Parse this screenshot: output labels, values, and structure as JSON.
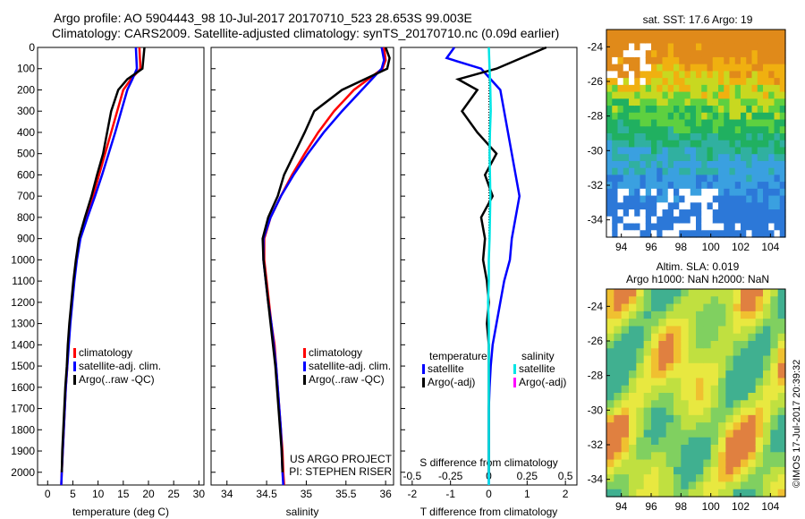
{
  "header": {
    "line1": "Argo profile: AO 5904443_98 10-Jul-2017 20170710_523 28.653S 99.003E",
    "line2": "Climatology: CARS2009. Satellite-adjusted climatology: synTS_20170710.nc (0.09d earlier)"
  },
  "colors": {
    "climatology": "#ff0000",
    "satellite": "#0000ff",
    "argo": "#000000",
    "satellite_salinity": "#00e5e5",
    "argo_salinity": "#ff00ff"
  },
  "chart_data": [
    {
      "type": "line",
      "panel": "temperature",
      "xlabel": "temperature (deg C)",
      "ylabel": "",
      "xlim": [
        -2,
        31
      ],
      "ylim": [
        2060,
        0
      ],
      "xticks": [
        0,
        5,
        10,
        15,
        20,
        25,
        30
      ],
      "yticks": [
        0,
        100,
        200,
        300,
        400,
        500,
        600,
        700,
        800,
        900,
        1000,
        1100,
        1200,
        1300,
        1400,
        1500,
        1600,
        1700,
        1800,
        1900,
        2000
      ],
      "legend": [
        "climatology",
        "satellite-adj. clim.",
        "Argo(..raw -QC)"
      ],
      "series": [
        {
          "name": "climatology",
          "color": "#ff0000",
          "points": [
            [
              18.2,
              0
            ],
            [
              18.3,
              50
            ],
            [
              18.4,
              100
            ],
            [
              16.5,
              150
            ],
            [
              15.0,
              200
            ],
            [
              13.8,
              300
            ],
            [
              12.6,
              400
            ],
            [
              11.4,
              500
            ],
            [
              10.2,
              600
            ],
            [
              9.0,
              700
            ],
            [
              7.7,
              800
            ],
            [
              6.4,
              900
            ],
            [
              5.7,
              1000
            ],
            [
              5.2,
              1100
            ],
            [
              4.8,
              1200
            ],
            [
              4.4,
              1300
            ],
            [
              4.1,
              1400
            ],
            [
              3.9,
              1500
            ],
            [
              3.6,
              1600
            ],
            [
              3.4,
              1700
            ],
            [
              3.2,
              1800
            ],
            [
              3.0,
              1900
            ],
            [
              2.8,
              2000
            ],
            [
              2.7,
              2060
            ]
          ]
        },
        {
          "name": "satellite-adj. clim.",
          "color": "#0000ff",
          "points": [
            [
              17.5,
              0
            ],
            [
              17.6,
              50
            ],
            [
              17.7,
              100
            ],
            [
              16.8,
              150
            ],
            [
              15.8,
              200
            ],
            [
              14.6,
              300
            ],
            [
              13.4,
              400
            ],
            [
              12.1,
              500
            ],
            [
              10.8,
              600
            ],
            [
              9.4,
              700
            ],
            [
              7.9,
              800
            ],
            [
              6.5,
              900
            ],
            [
              5.8,
              1000
            ],
            [
              5.3,
              1100
            ],
            [
              4.9,
              1200
            ],
            [
              4.5,
              1300
            ],
            [
              4.2,
              1400
            ],
            [
              3.9,
              1500
            ],
            [
              3.6,
              1600
            ],
            [
              3.4,
              1700
            ],
            [
              3.2,
              1800
            ],
            [
              3.0,
              1900
            ],
            [
              2.8,
              2000
            ],
            [
              2.7,
              2060
            ]
          ]
        },
        {
          "name": "Argo(..raw -QC)",
          "color": "#000000",
          "points": [
            [
              19.2,
              0
            ],
            [
              19.0,
              50
            ],
            [
              18.8,
              100
            ],
            [
              15.8,
              150
            ],
            [
              14.0,
              200
            ],
            [
              12.6,
              300
            ],
            [
              11.8,
              400
            ],
            [
              11.0,
              500
            ],
            [
              9.8,
              600
            ],
            [
              8.7,
              700
            ],
            [
              7.4,
              800
            ],
            [
              6.2,
              900
            ],
            [
              5.6,
              1000
            ],
            [
              5.1,
              1100
            ],
            [
              4.7,
              1200
            ],
            [
              4.3,
              1300
            ],
            [
              4.0,
              1400
            ],
            [
              3.8,
              1500
            ],
            [
              3.5,
              1600
            ],
            [
              3.3,
              1700
            ],
            [
              3.1,
              1800
            ],
            [
              2.9,
              1900
            ],
            [
              2.8,
              2000
            ]
          ]
        }
      ]
    },
    {
      "type": "line",
      "panel": "salinity",
      "xlabel": "salinity",
      "ylabel": "",
      "xlim": [
        33.8,
        36.1
      ],
      "ylim": [
        2060,
        0
      ],
      "xticks": [
        34,
        34.5,
        35,
        35.5,
        36
      ],
      "legend": [
        "climatology",
        "satellite-adj. clim.",
        "Argo(..raw -QC)"
      ],
      "annotation": [
        "US ARGO PROJECT",
        "PI: STEPHEN RISER"
      ],
      "series": [
        {
          "name": "climatology",
          "color": "#ff0000",
          "points": [
            [
              35.98,
              0
            ],
            [
              36.0,
              60
            ],
            [
              35.96,
              100
            ],
            [
              35.6,
              200
            ],
            [
              35.35,
              300
            ],
            [
              35.15,
              400
            ],
            [
              34.98,
              500
            ],
            [
              34.82,
              600
            ],
            [
              34.68,
              700
            ],
            [
              34.55,
              800
            ],
            [
              34.47,
              900
            ],
            [
              34.47,
              1000
            ],
            [
              34.5,
              1100
            ],
            [
              34.53,
              1200
            ],
            [
              34.56,
              1300
            ],
            [
              34.6,
              1400
            ],
            [
              34.62,
              1500
            ],
            [
              34.64,
              1600
            ],
            [
              34.66,
              1700
            ],
            [
              34.68,
              1800
            ],
            [
              34.7,
              1900
            ],
            [
              34.71,
              2000
            ],
            [
              34.72,
              2060
            ]
          ]
        },
        {
          "name": "satellite-adj. clim.",
          "color": "#0000ff",
          "points": [
            [
              35.95,
              0
            ],
            [
              35.98,
              60
            ],
            [
              35.95,
              100
            ],
            [
              35.7,
              200
            ],
            [
              35.45,
              300
            ],
            [
              35.22,
              400
            ],
            [
              35.02,
              500
            ],
            [
              34.84,
              600
            ],
            [
              34.68,
              700
            ],
            [
              34.55,
              800
            ],
            [
              34.46,
              900
            ],
            [
              34.46,
              1000
            ],
            [
              34.49,
              1100
            ],
            [
              34.52,
              1200
            ],
            [
              34.56,
              1300
            ],
            [
              34.59,
              1400
            ],
            [
              34.62,
              1500
            ],
            [
              34.64,
              1600
            ],
            [
              34.66,
              1700
            ],
            [
              34.68,
              1800
            ],
            [
              34.69,
              1900
            ],
            [
              34.7,
              2000
            ],
            [
              34.71,
              2060
            ]
          ]
        },
        {
          "name": "Argo(..raw -QC)",
          "color": "#000000",
          "points": [
            [
              36.0,
              0
            ],
            [
              36.05,
              50
            ],
            [
              36.02,
              100
            ],
            [
              35.45,
              200
            ],
            [
              35.1,
              300
            ],
            [
              34.98,
              400
            ],
            [
              34.85,
              500
            ],
            [
              34.72,
              600
            ],
            [
              34.64,
              700
            ],
            [
              34.52,
              800
            ],
            [
              34.45,
              900
            ],
            [
              34.46,
              1000
            ],
            [
              34.49,
              1100
            ],
            [
              34.52,
              1200
            ],
            [
              34.55,
              1300
            ],
            [
              34.58,
              1400
            ],
            [
              34.61,
              1500
            ],
            [
              34.63,
              1600
            ],
            [
              34.65,
              1700
            ],
            [
              34.67,
              1800
            ],
            [
              34.69,
              1900
            ],
            [
              34.7,
              2000
            ]
          ]
        }
      ]
    },
    {
      "type": "line",
      "panel": "difference",
      "xlabel": "T difference from climatology",
      "xlabel_top": "S difference from climatology",
      "xlim": [
        -2.3,
        2.3
      ],
      "ylim": [
        2060,
        0
      ],
      "xticks": [
        -2,
        -1,
        0,
        1,
        2
      ],
      "xticks_s": [
        -0.5,
        -0.25,
        0,
        0.25,
        0.5
      ],
      "legend_headers": [
        "temperature",
        "salinity"
      ],
      "legend": [
        "satellite",
        "Argo(-adj)",
        "satellite",
        "Argo(-adj)"
      ],
      "series": [
        {
          "name": "T satellite",
          "color": "#0000ff",
          "points": [
            [
              -0.9,
              0
            ],
            [
              -1.1,
              50
            ],
            [
              -0.2,
              100
            ],
            [
              0.3,
              200
            ],
            [
              0.4,
              300
            ],
            [
              0.5,
              400
            ],
            [
              0.6,
              500
            ],
            [
              0.7,
              600
            ],
            [
              0.8,
              700
            ],
            [
              0.7,
              800
            ],
            [
              0.6,
              900
            ],
            [
              0.55,
              1000
            ],
            [
              0.4,
              1100
            ],
            [
              0.3,
              1200
            ],
            [
              0.2,
              1300
            ],
            [
              0.1,
              1400
            ],
            [
              0.05,
              1500
            ],
            [
              0.02,
              1600
            ],
            [
              0.0,
              1700
            ],
            [
              0.0,
              1800
            ],
            [
              0.0,
              1900
            ],
            [
              0.0,
              2000
            ],
            [
              0.0,
              2060
            ]
          ]
        },
        {
          "name": "T Argo(-adj)",
          "color": "#000000",
          "points": [
            [
              1.5,
              0
            ],
            [
              0.2,
              100
            ],
            [
              -0.8,
              150
            ],
            [
              -0.3,
              200
            ],
            [
              -0.7,
              300
            ],
            [
              -0.3,
              400
            ],
            [
              0.2,
              500
            ],
            [
              -0.1,
              600
            ],
            [
              0.1,
              700
            ],
            [
              -0.2,
              800
            ],
            [
              -0.1,
              900
            ],
            [
              -0.15,
              1000
            ],
            [
              -0.05,
              1100
            ],
            [
              0.0,
              1200
            ],
            [
              -0.05,
              1300
            ],
            [
              0.0,
              1400
            ],
            [
              0.0,
              1500
            ],
            [
              0.0,
              1600
            ],
            [
              0.0,
              1700
            ],
            [
              0.0,
              1800
            ],
            [
              0.0,
              1900
            ],
            [
              0.0,
              2000
            ]
          ]
        },
        {
          "name": "S satellite",
          "color": "#00e5e5",
          "points": [
            [
              0.0,
              0
            ],
            [
              0.02,
              100
            ],
            [
              0.04,
              200
            ],
            [
              0.05,
              300
            ],
            [
              0.03,
              400
            ],
            [
              0.02,
              500
            ],
            [
              0.03,
              600
            ],
            [
              0.04,
              700
            ],
            [
              0.03,
              800
            ],
            [
              0.02,
              900
            ],
            [
              0.0,
              1000
            ],
            [
              0.0,
              1100
            ],
            [
              -0.02,
              1200
            ],
            [
              0.0,
              1300
            ],
            [
              0.0,
              1400
            ],
            [
              0.0,
              1500
            ],
            [
              0.0,
              1600
            ],
            [
              0.0,
              1700
            ],
            [
              0.0,
              1800
            ],
            [
              0.0,
              1900
            ],
            [
              0.0,
              2000
            ],
            [
              0.0,
              2060
            ]
          ]
        }
      ]
    },
    {
      "type": "heatmap",
      "panel": "sst-map",
      "title": "sat. SST: 17.6 Argo: 19",
      "xlim": [
        93,
        105
      ],
      "ylim": [
        -35,
        -23
      ],
      "xticks": [
        94,
        96,
        98,
        100,
        102,
        104
      ],
      "yticks": [
        -24,
        -26,
        -28,
        -30,
        -32,
        -34
      ]
    },
    {
      "type": "heatmap",
      "panel": "sla-map",
      "title_line1": "Altim. SLA: 0.019",
      "title_line2": "Argo h1000: NaN h2000: NaN",
      "xlim": [
        93,
        105
      ],
      "ylim": [
        -35,
        -23
      ],
      "xticks": [
        94,
        96,
        98,
        100,
        102,
        104
      ],
      "yticks": [
        -24,
        -26,
        -28,
        -30,
        -32,
        -34
      ]
    }
  ],
  "stamp": "©IMOS 17-Jul-2017 20:39:32"
}
